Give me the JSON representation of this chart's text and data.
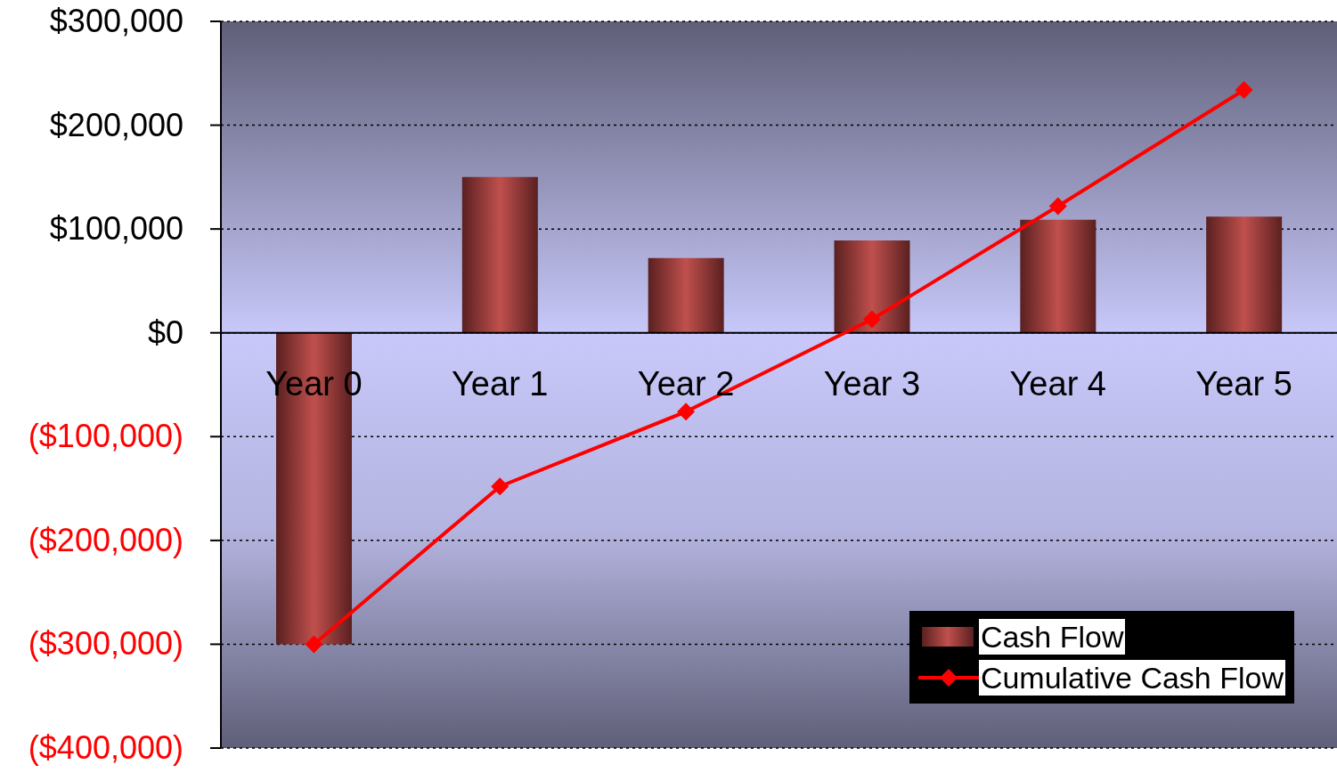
{
  "chart_data": {
    "type": "bar",
    "categories": [
      "Year 0",
      "Year 1",
      "Year 2",
      "Year 3",
      "Year 4",
      "Year 5"
    ],
    "series": [
      {
        "name": "Cash Flow",
        "color": "#c0504d",
        "values": [
          -300000,
          150000,
          72000,
          89000,
          109000,
          112000
        ]
      },
      {
        "name": "Cumulative Cash Flow",
        "type": "line",
        "color": "#ff0000",
        "values": [
          -300000,
          -148000,
          -76000,
          13000,
          122000,
          234000
        ]
      }
    ],
    "ylim": [
      -400000,
      300000
    ],
    "yticks": [
      {
        "value": -400000,
        "label": "($400,000)"
      },
      {
        "value": -300000,
        "label": "($300,000)"
      },
      {
        "value": -200000,
        "label": "($200,000)"
      },
      {
        "value": -100000,
        "label": "($100,000)"
      },
      {
        "value": 0,
        "label": "$0"
      },
      {
        "value": 100000,
        "label": "$100,000"
      },
      {
        "value": 200000,
        "label": "$200,000"
      },
      {
        "value": 300000,
        "label": "$300,000"
      }
    ],
    "grid": "y",
    "legend": "bottom right",
    "marker": "diamond",
    "line_style": "solid"
  }
}
